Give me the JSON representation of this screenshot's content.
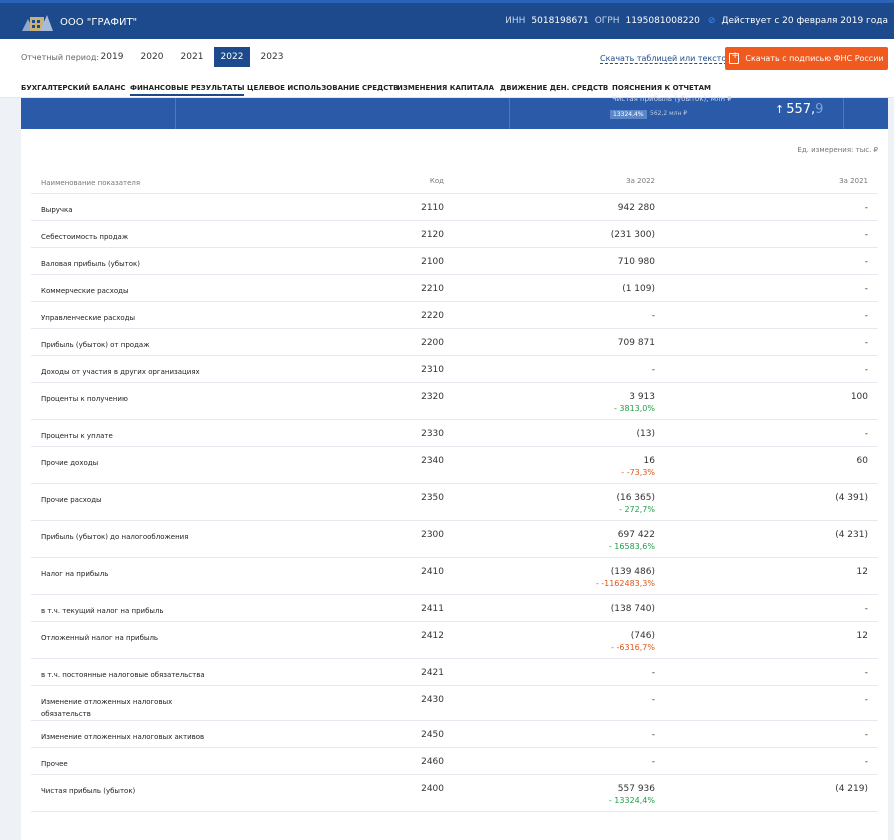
{
  "header": {
    "company": "ООО \"ГРАФИТ\"",
    "inn_label": "ИНН",
    "inn": "5018198671",
    "ogrn_label": "ОГРН",
    "ogrn": "1195081008220",
    "status": "Действует с 20 февраля 2019 года"
  },
  "period": {
    "label": "Отчетный период:",
    "years": [
      "2019",
      "2020",
      "2021",
      "2022",
      "2023"
    ],
    "active": "2022"
  },
  "actions": {
    "download_link": "Скачать таблицей или текстом",
    "download_button": "Скачать с подписью ФНС России"
  },
  "tabs": [
    "БУХГАЛТЕРСКИЙ БАЛАНС",
    "ФИНАНСОВЫЕ РЕЗУЛЬТАТЫ",
    "ЦЕЛЕВОЕ ИСПОЛЬЗОВАНИЕ СРЕДСТВ",
    "ИЗМЕНЕНИЯ КАПИТАЛА",
    "ДВИЖЕНИЕ ДЕН. СРЕДСТВ",
    "ПОЯСНЕНИЯ К ОТЧЕТАМ"
  ],
  "banner": {
    "label": "Чистая прибыль (убыток), млн ₽",
    "badge": "13324,4%",
    "sub": "562,2 млн ₽",
    "value_int": "557,",
    "value_dec": "9"
  },
  "unit": "Ед. измерения: тыс. ₽",
  "columns": {
    "name": "Наименование показателя",
    "code": "Код",
    "current": "За 2022",
    "previous": "За 2021"
  },
  "rows": [
    {
      "name": "Выручка",
      "code": "2110",
      "current": "942 280",
      "change": "",
      "dir": "",
      "previous": "-"
    },
    {
      "name": "Себестоимость продаж",
      "code": "2120",
      "current": "(231 300)",
      "change": "",
      "dir": "",
      "previous": "-"
    },
    {
      "name": "Валовая прибыль (убыток)",
      "code": "2100",
      "current": "710 980",
      "change": "",
      "dir": "",
      "previous": "-"
    },
    {
      "name": "Коммерческие расходы",
      "code": "2210",
      "current": "(1 109)",
      "change": "",
      "dir": "",
      "previous": "-"
    },
    {
      "name": "Управленческие расходы",
      "code": "2220",
      "current": "-",
      "change": "",
      "dir": "",
      "previous": "-"
    },
    {
      "name": "Прибыль (убыток) от продаж",
      "code": "2200",
      "current": "709 871",
      "change": "",
      "dir": "",
      "previous": "-"
    },
    {
      "name": "Доходы от участия в других организациях",
      "code": "2310",
      "current": "-",
      "change": "",
      "dir": "",
      "previous": "-"
    },
    {
      "name": "Проценты к получению",
      "code": "2320",
      "current": "3 913",
      "change": "- 3813,0%",
      "dir": "up",
      "previous": "100"
    },
    {
      "name": "Проценты к уплате",
      "code": "2330",
      "current": "(13)",
      "change": "",
      "dir": "",
      "previous": "-"
    },
    {
      "name": "Прочие доходы",
      "code": "2340",
      "current": "16",
      "change": "- -73,3%",
      "dir": "down",
      "previous": "60"
    },
    {
      "name": "Прочие расходы",
      "code": "2350",
      "current": "(16 365)",
      "change": "- 272,7%",
      "dir": "up",
      "previous": "(4 391)"
    },
    {
      "name": "Прибыль (убыток) до налогообложения",
      "code": "2300",
      "current": "697 422",
      "change": "- 16583,6%",
      "dir": "up",
      "previous": "(4 231)"
    },
    {
      "name": "Налог на прибыль",
      "code": "2410",
      "current": "(139 486)",
      "change": "- -1162483,3%",
      "dir": "down",
      "previous": "12"
    },
    {
      "name": "в т.ч. текущий налог на прибыль",
      "code": "2411",
      "current": "(138 740)",
      "change": "",
      "dir": "",
      "previous": "-"
    },
    {
      "name": "Отложенный налог на прибыль",
      "code": "2412",
      "current": "(746)",
      "change": "- -6316,7%",
      "dir": "down",
      "previous": "12"
    },
    {
      "name": "в т.ч. постоянные налоговые обязательства",
      "code": "2421",
      "current": "-",
      "change": "",
      "dir": "",
      "previous": "-"
    },
    {
      "name": "Изменение отложенных налоговых обязательств",
      "code": "2430",
      "current": "-",
      "change": "",
      "dir": "",
      "previous": "-"
    },
    {
      "name": "Изменение отложенных налоговых активов",
      "code": "2450",
      "current": "-",
      "change": "",
      "dir": "",
      "previous": "-"
    },
    {
      "name": "Прочее",
      "code": "2460",
      "current": "-",
      "change": "",
      "dir": "",
      "previous": "-"
    },
    {
      "name": "Чистая прибыль (убыток)",
      "code": "2400",
      "current": "557 936",
      "change": "- 13324,4%",
      "dir": "up",
      "previous": "(4 219)"
    }
  ]
}
